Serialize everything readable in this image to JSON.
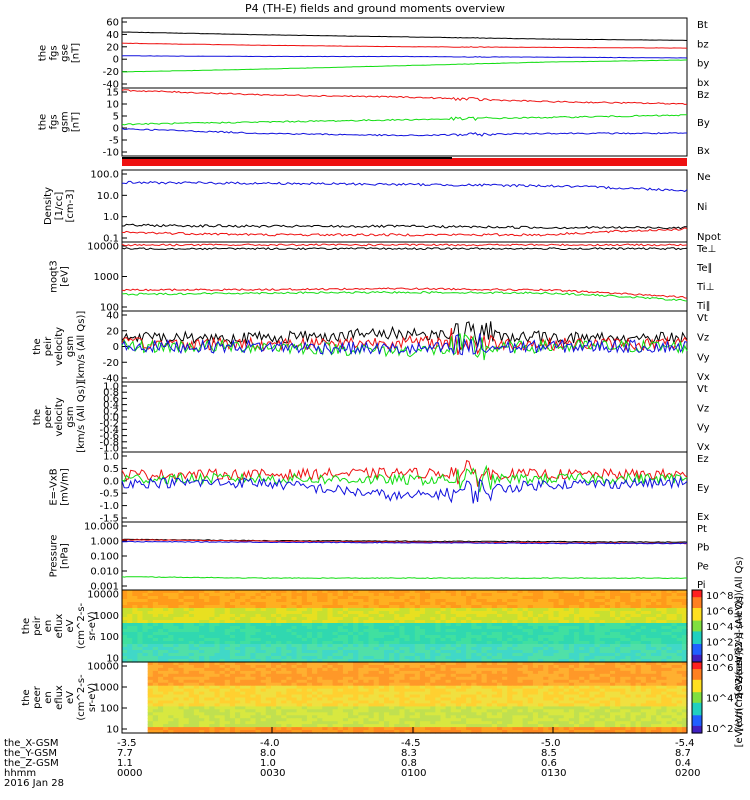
{
  "title": "P4 (TH-E) fields and ground moments overview",
  "colors": {
    "black": "#000000",
    "red": "#ee1111",
    "green": "#11dd11",
    "blue": "#1111dd"
  },
  "x_axis": {
    "rows": [
      {
        "label": "the_X-GSM",
        "values": [
          "-3.5",
          "-4.0",
          "-4.5",
          "-5.0",
          "-5.4"
        ]
      },
      {
        "label": "the_Y-GSM",
        "values": [
          "7.7",
          "8.0",
          "8.3",
          "8.5",
          "8.7"
        ]
      },
      {
        "label": "the_Z-GSM",
        "values": [
          "1.1",
          "1.0",
          "0.8",
          "0.6",
          "0.4"
        ]
      },
      {
        "label": "hhmm",
        "values": [
          "0000",
          "0030",
          "0100",
          "0130",
          "0200"
        ]
      }
    ],
    "date": "2016 Jan 28"
  },
  "panels": [
    {
      "ylabel": [
        "the",
        "fgs",
        "gse",
        "[nT]"
      ],
      "ticks": [
        "60",
        "40",
        "20",
        "0",
        "-20",
        "-40"
      ],
      "legend": [
        {
          "text": "Bt",
          "color": "#000000"
        },
        {
          "text": "bz",
          "color": "#ee1111"
        },
        {
          "text": "by",
          "color": "#11dd11"
        },
        {
          "text": "bx",
          "color": "#1111dd"
        }
      ]
    },
    {
      "ylabel": [
        "the",
        "fgs",
        "gsm",
        "[nT]"
      ],
      "ticks": [
        "15",
        "10",
        "5",
        "0",
        "-5",
        "-10"
      ],
      "legend": [
        {
          "text": "Bz",
          "color": "#ee1111"
        },
        {
          "text": "By",
          "color": "#11dd11"
        },
        {
          "text": "Bx",
          "color": "#1111dd"
        }
      ]
    },
    {
      "ylabel": [
        "Density",
        "[1/cc]",
        "[cm-3]"
      ],
      "ticks": [
        "100.0",
        "10.0",
        "1.0",
        "0.1"
      ],
      "legend": [
        {
          "text": "Ne",
          "color": "#ee1111"
        },
        {
          "text": "Ni",
          "color": "#000000"
        },
        {
          "text": "Npot",
          "color": "#1111dd"
        }
      ]
    },
    {
      "ylabel": [
        "moqt3",
        "[eV]"
      ],
      "ticks": [
        "10000",
        "1000",
        "100"
      ],
      "legend": [
        {
          "text": "Te⊥",
          "color": "#ee1111"
        },
        {
          "text": "Te∥",
          "color": "#000000"
        },
        {
          "text": "Ti⊥",
          "color": "#ee1111"
        },
        {
          "text": "Ti∥",
          "color": "#11dd11"
        }
      ]
    },
    {
      "ylabel": [
        "the",
        "peir",
        "velocity",
        "gsm",
        "[km/s (All Qs)]"
      ],
      "ticks": [
        "40",
        "20",
        "0",
        "-20",
        "-40"
      ],
      "legend": [
        {
          "text": "Vt",
          "color": "#000000"
        },
        {
          "text": "Vz",
          "color": "#ee1111"
        },
        {
          "text": "Vy",
          "color": "#11dd11"
        },
        {
          "text": "Vx",
          "color": "#1111dd"
        }
      ]
    },
    {
      "ylabel": [
        "the",
        "peer",
        "velocity",
        "gsm",
        "[km/s (All Qs)]"
      ],
      "ticks": [
        "1.0",
        "0.8",
        "0.6",
        "0.4",
        "0.2",
        "0.0",
        "-0.2",
        "-0.4",
        "-0.6",
        "-0.8",
        "-1.0"
      ],
      "legend": [
        {
          "text": "Vt",
          "color": "#000000"
        },
        {
          "text": "Vz",
          "color": "#ee1111"
        },
        {
          "text": "Vy",
          "color": "#11dd11"
        },
        {
          "text": "Vx",
          "color": "#1111dd"
        }
      ]
    },
    {
      "ylabel": [
        "E=-VxB",
        "[mV/m]"
      ],
      "ticks": [
        "1.0",
        "0.5",
        "0.0",
        "-0.5",
        "-1.0",
        "-1.5"
      ],
      "legend": [
        {
          "text": "Ez",
          "color": "#ee1111"
        },
        {
          "text": "Ey",
          "color": "#11dd11"
        },
        {
          "text": "Ex",
          "color": "#1111dd"
        }
      ]
    },
    {
      "ylabel": [
        "Pressure",
        "[nPa]"
      ],
      "ticks": [
        "10.000",
        "1.000",
        "0.100",
        "0.010",
        "0.001"
      ],
      "legend": [
        {
          "text": "Pt",
          "color": "#000000"
        },
        {
          "text": "Pb",
          "color": "#ee1111"
        },
        {
          "text": "Pe",
          "color": "#11dd11"
        },
        {
          "text": "Pi",
          "color": "#1111dd"
        }
      ]
    },
    {
      "ylabel": [
        "the",
        "peir",
        "en",
        "eflux",
        "eV",
        "(cm^2-s-",
        "sr-eV)"
      ],
      "ticks": [
        "10000",
        "1000",
        "100",
        "10"
      ],
      "legend": []
    },
    {
      "ylabel": [
        "the",
        "peer",
        "en",
        "eflux",
        "eV",
        "(cm^2-s-",
        "sr-eV)"
      ],
      "ticks": [
        "10000",
        "1000",
        "100",
        "10"
      ],
      "legend": []
    }
  ],
  "colorbars": [
    {
      "ticks": [
        "10^8",
        "10^6",
        "10^4",
        "10^2",
        "10^0"
      ],
      "label": "[eV/(cm^2-s-sr-eV)] (All Qs)"
    },
    {
      "ticks": [
        "10^6",
        "10^4",
        "10^2"
      ],
      "label": "[eV/(cm^2-s-sr-eV)]"
    }
  ],
  "chart_data": [
    {
      "type": "line",
      "panel": "the fgs gse",
      "ylim": [
        -40,
        60
      ],
      "x": [
        "0000",
        "0030",
        "0100",
        "0130",
        "0200"
      ],
      "series": [
        {
          "name": "Bt",
          "values": [
            40,
            36,
            33,
            30,
            28
          ]
        },
        {
          "name": "bz",
          "values": [
            24,
            21,
            19,
            18,
            17
          ]
        },
        {
          "name": "by",
          "values": [
            -17,
            -13,
            -8,
            -3,
            0
          ]
        },
        {
          "name": "bx",
          "values": [
            6,
            5,
            5,
            4,
            3
          ]
        }
      ]
    },
    {
      "type": "line",
      "panel": "the fgs gsm",
      "ylim": [
        -15,
        15
      ],
      "x": [
        "0000",
        "0030",
        "0100",
        "0130",
        "0200"
      ],
      "series": [
        {
          "name": "Bz",
          "values": [
            14,
            12,
            11,
            9,
            8
          ]
        },
        {
          "name": "By",
          "values": [
            -1,
            0,
            1,
            2,
            3
          ]
        },
        {
          "name": "Bx",
          "values": [
            -3,
            -5,
            -6,
            -5,
            -5
          ]
        }
      ]
    },
    {
      "type": "line",
      "panel": "Density",
      "yscale": "log",
      "ylim": [
        0.1,
        100
      ],
      "x": [
        "0000",
        "0030",
        "0100",
        "0130",
        "0200"
      ],
      "series": [
        {
          "name": "Ne",
          "values": [
            0.25,
            0.2,
            0.2,
            0.2,
            0.35
          ]
        },
        {
          "name": "Ni",
          "values": [
            0.5,
            0.45,
            0.45,
            0.4,
            0.4
          ]
        },
        {
          "name": "Npot",
          "values": [
            30,
            28,
            25,
            22,
            14
          ]
        }
      ]
    },
    {
      "type": "line",
      "panel": "moqt3",
      "yscale": "log",
      "ylim": [
        50,
        10000
      ],
      "x": [
        "0000",
        "0030",
        "0100",
        "0130",
        "0200"
      ],
      "series": [
        {
          "name": "Te⊥",
          "values": [
            8000,
            8000,
            8000,
            8000,
            8000
          ]
        },
        {
          "name": "Te∥",
          "values": [
            6000,
            6000,
            6000,
            6000,
            6000
          ]
        },
        {
          "name": "Ti⊥",
          "values": [
            250,
            260,
            280,
            250,
            140
          ]
        },
        {
          "name": "Ti∥",
          "values": [
            180,
            200,
            210,
            200,
            110
          ]
        }
      ]
    },
    {
      "type": "line",
      "panel": "the peir velocity",
      "ylim": [
        -40,
        40
      ],
      "x": [
        "0000",
        "0030",
        "0100",
        "0130",
        "0200"
      ],
      "series": [
        {
          "name": "Vt",
          "values": [
            10,
            10,
            15,
            10,
            10
          ]
        },
        {
          "name": "Vz",
          "values": [
            3,
            3,
            5,
            3,
            3
          ]
        },
        {
          "name": "Vy",
          "values": [
            0,
            0,
            -5,
            0,
            0
          ]
        },
        {
          "name": "Vx",
          "values": [
            0,
            0,
            -3,
            0,
            0
          ]
        }
      ]
    },
    {
      "type": "line",
      "panel": "the peer velocity",
      "ylim": [
        -1,
        1
      ],
      "x": [
        "0000",
        "0030",
        "0100",
        "0130",
        "0200"
      ],
      "series": []
    },
    {
      "type": "line",
      "panel": "E=-VxB",
      "ylim": [
        -1.5,
        1.0
      ],
      "x": [
        "0000",
        "0030",
        "0100",
        "0130",
        "0200"
      ],
      "series": [
        {
          "name": "Ez",
          "values": [
            0.2,
            0.2,
            0.25,
            0.2,
            0.2
          ]
        },
        {
          "name": "Ey",
          "values": [
            0.05,
            0.05,
            0.0,
            0.05,
            0.05
          ]
        },
        {
          "name": "Ex",
          "values": [
            -0.1,
            -0.1,
            -0.6,
            -0.15,
            -0.1
          ]
        }
      ]
    },
    {
      "type": "line",
      "panel": "Pressure",
      "yscale": "log",
      "ylim": [
        0.001,
        10
      ],
      "x": [
        "0000",
        "0030",
        "0100",
        "0130",
        "0200"
      ],
      "series": [
        {
          "name": "Pt",
          "values": [
            0.95,
            0.8,
            0.75,
            0.7,
            0.65
          ]
        },
        {
          "name": "Pb",
          "values": [
            0.9,
            0.75,
            0.65,
            0.6,
            0.55
          ]
        },
        {
          "name": "Pe",
          "values": [
            0.006,
            0.005,
            0.005,
            0.005,
            0.005
          ]
        },
        {
          "name": "Pi",
          "values": [
            0.7,
            0.65,
            0.6,
            0.55,
            0.55
          ]
        }
      ]
    },
    {
      "type": "heatmap",
      "panel": "the peir en eflux",
      "yscale": "log",
      "ylim": [
        10,
        20000
      ],
      "x": [
        "0000",
        "0030",
        "0100",
        "0130",
        "0200"
      ]
    },
    {
      "type": "heatmap",
      "panel": "the peer en eflux",
      "yscale": "log",
      "ylim": [
        10,
        20000
      ],
      "x": [
        "0000",
        "0030",
        "0100",
        "0130",
        "0200"
      ]
    }
  ]
}
